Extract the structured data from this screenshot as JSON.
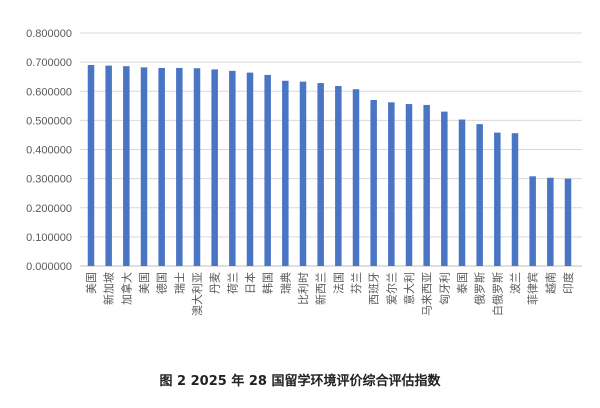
{
  "figure_caption": "图 2 2025 年 28 国留学环境评价综合评估指数",
  "chart_data": {
    "type": "bar",
    "title": "",
    "xlabel": "",
    "ylabel": "",
    "ylim": [
      0,
      0.8
    ],
    "yticks": [
      "0.000000",
      "0.100000",
      "0.200000",
      "0.300000",
      "0.400000",
      "0.500000",
      "0.600000",
      "0.700000",
      "0.800000"
    ],
    "grid": true,
    "legend": "none",
    "bar_color": "#4a74c4",
    "categories": [
      "美国",
      "新加坡",
      "加拿大",
      "美国",
      "德国",
      "瑞士",
      "澳大利亚",
      "丹麦",
      "荷兰",
      "日本",
      "韩国",
      "瑞典",
      "比利时",
      "新西兰",
      "法国",
      "芬兰",
      "西班牙",
      "爱尔兰",
      "意大利",
      "马来西亚",
      "匈牙利",
      "泰国",
      "俄罗斯",
      "白俄罗斯",
      "波兰",
      "菲律宾",
      "越南",
      "印度"
    ],
    "values": [
      0.69,
      0.688,
      0.686,
      0.682,
      0.68,
      0.68,
      0.679,
      0.675,
      0.67,
      0.664,
      0.656,
      0.636,
      0.633,
      0.628,
      0.618,
      0.607,
      0.57,
      0.562,
      0.556,
      0.553,
      0.53,
      0.503,
      0.487,
      0.458,
      0.456,
      0.308,
      0.303,
      0.3
    ]
  }
}
